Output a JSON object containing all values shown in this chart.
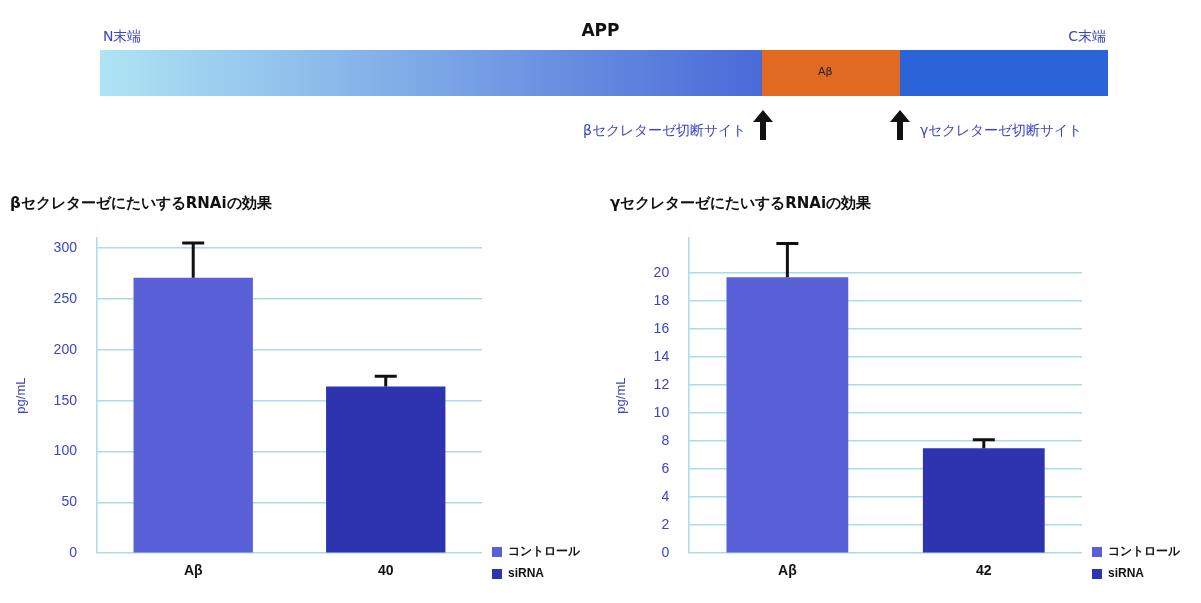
{
  "chart_data": [
    {
      "type": "other",
      "title": "APP",
      "annotations": [
        "N末端",
        "C末端",
        "Aβ",
        "βセクレターゼ切断サイト",
        "γセクレターゼ切断サイト"
      ]
    },
    {
      "type": "bar",
      "title": "βセクレターゼにたいするRNAiの効果",
      "ylabel": "pg/mL",
      "categories": [
        "Aβ",
        "40"
      ],
      "series": [
        {
          "name": "コントロール",
          "color": "#5a60d8",
          "values": [
            271,
            null
          ],
          "errors": [
            [
              271,
              305
            ],
            null
          ]
        },
        {
          "name": "siRNA",
          "color": "#2e34b0",
          "values": [
            null,
            164
          ],
          "errors": [
            null,
            [
              164,
              174
            ]
          ]
        }
      ],
      "ylim": [
        0,
        310
      ],
      "yticks": [
        0,
        50,
        100,
        150,
        200,
        250,
        300
      ],
      "grid": "y",
      "legend": "bottom right"
    },
    {
      "type": "bar",
      "title": "γセクレターゼにたいするRNAiの効果",
      "ylabel": "pg/mL",
      "categories": [
        "Aβ",
        "42"
      ],
      "series": [
        {
          "name": "コントロール",
          "color": "#5a60d8",
          "values": [
            19.7,
            null
          ],
          "errors": [
            [
              19.7,
              22.1
            ],
            null
          ]
        },
        {
          "name": "siRNA",
          "color": "#2e34b0",
          "values": [
            null,
            7.5
          ],
          "errors": [
            null,
            [
              7.5,
              8.1
            ]
          ]
        }
      ],
      "ylim": [
        0,
        22.5
      ],
      "yticks": [
        0,
        2,
        4,
        6,
        8,
        10,
        12,
        14,
        16,
        18,
        20
      ],
      "grid": "y",
      "legend": "bottom right"
    }
  ]
}
